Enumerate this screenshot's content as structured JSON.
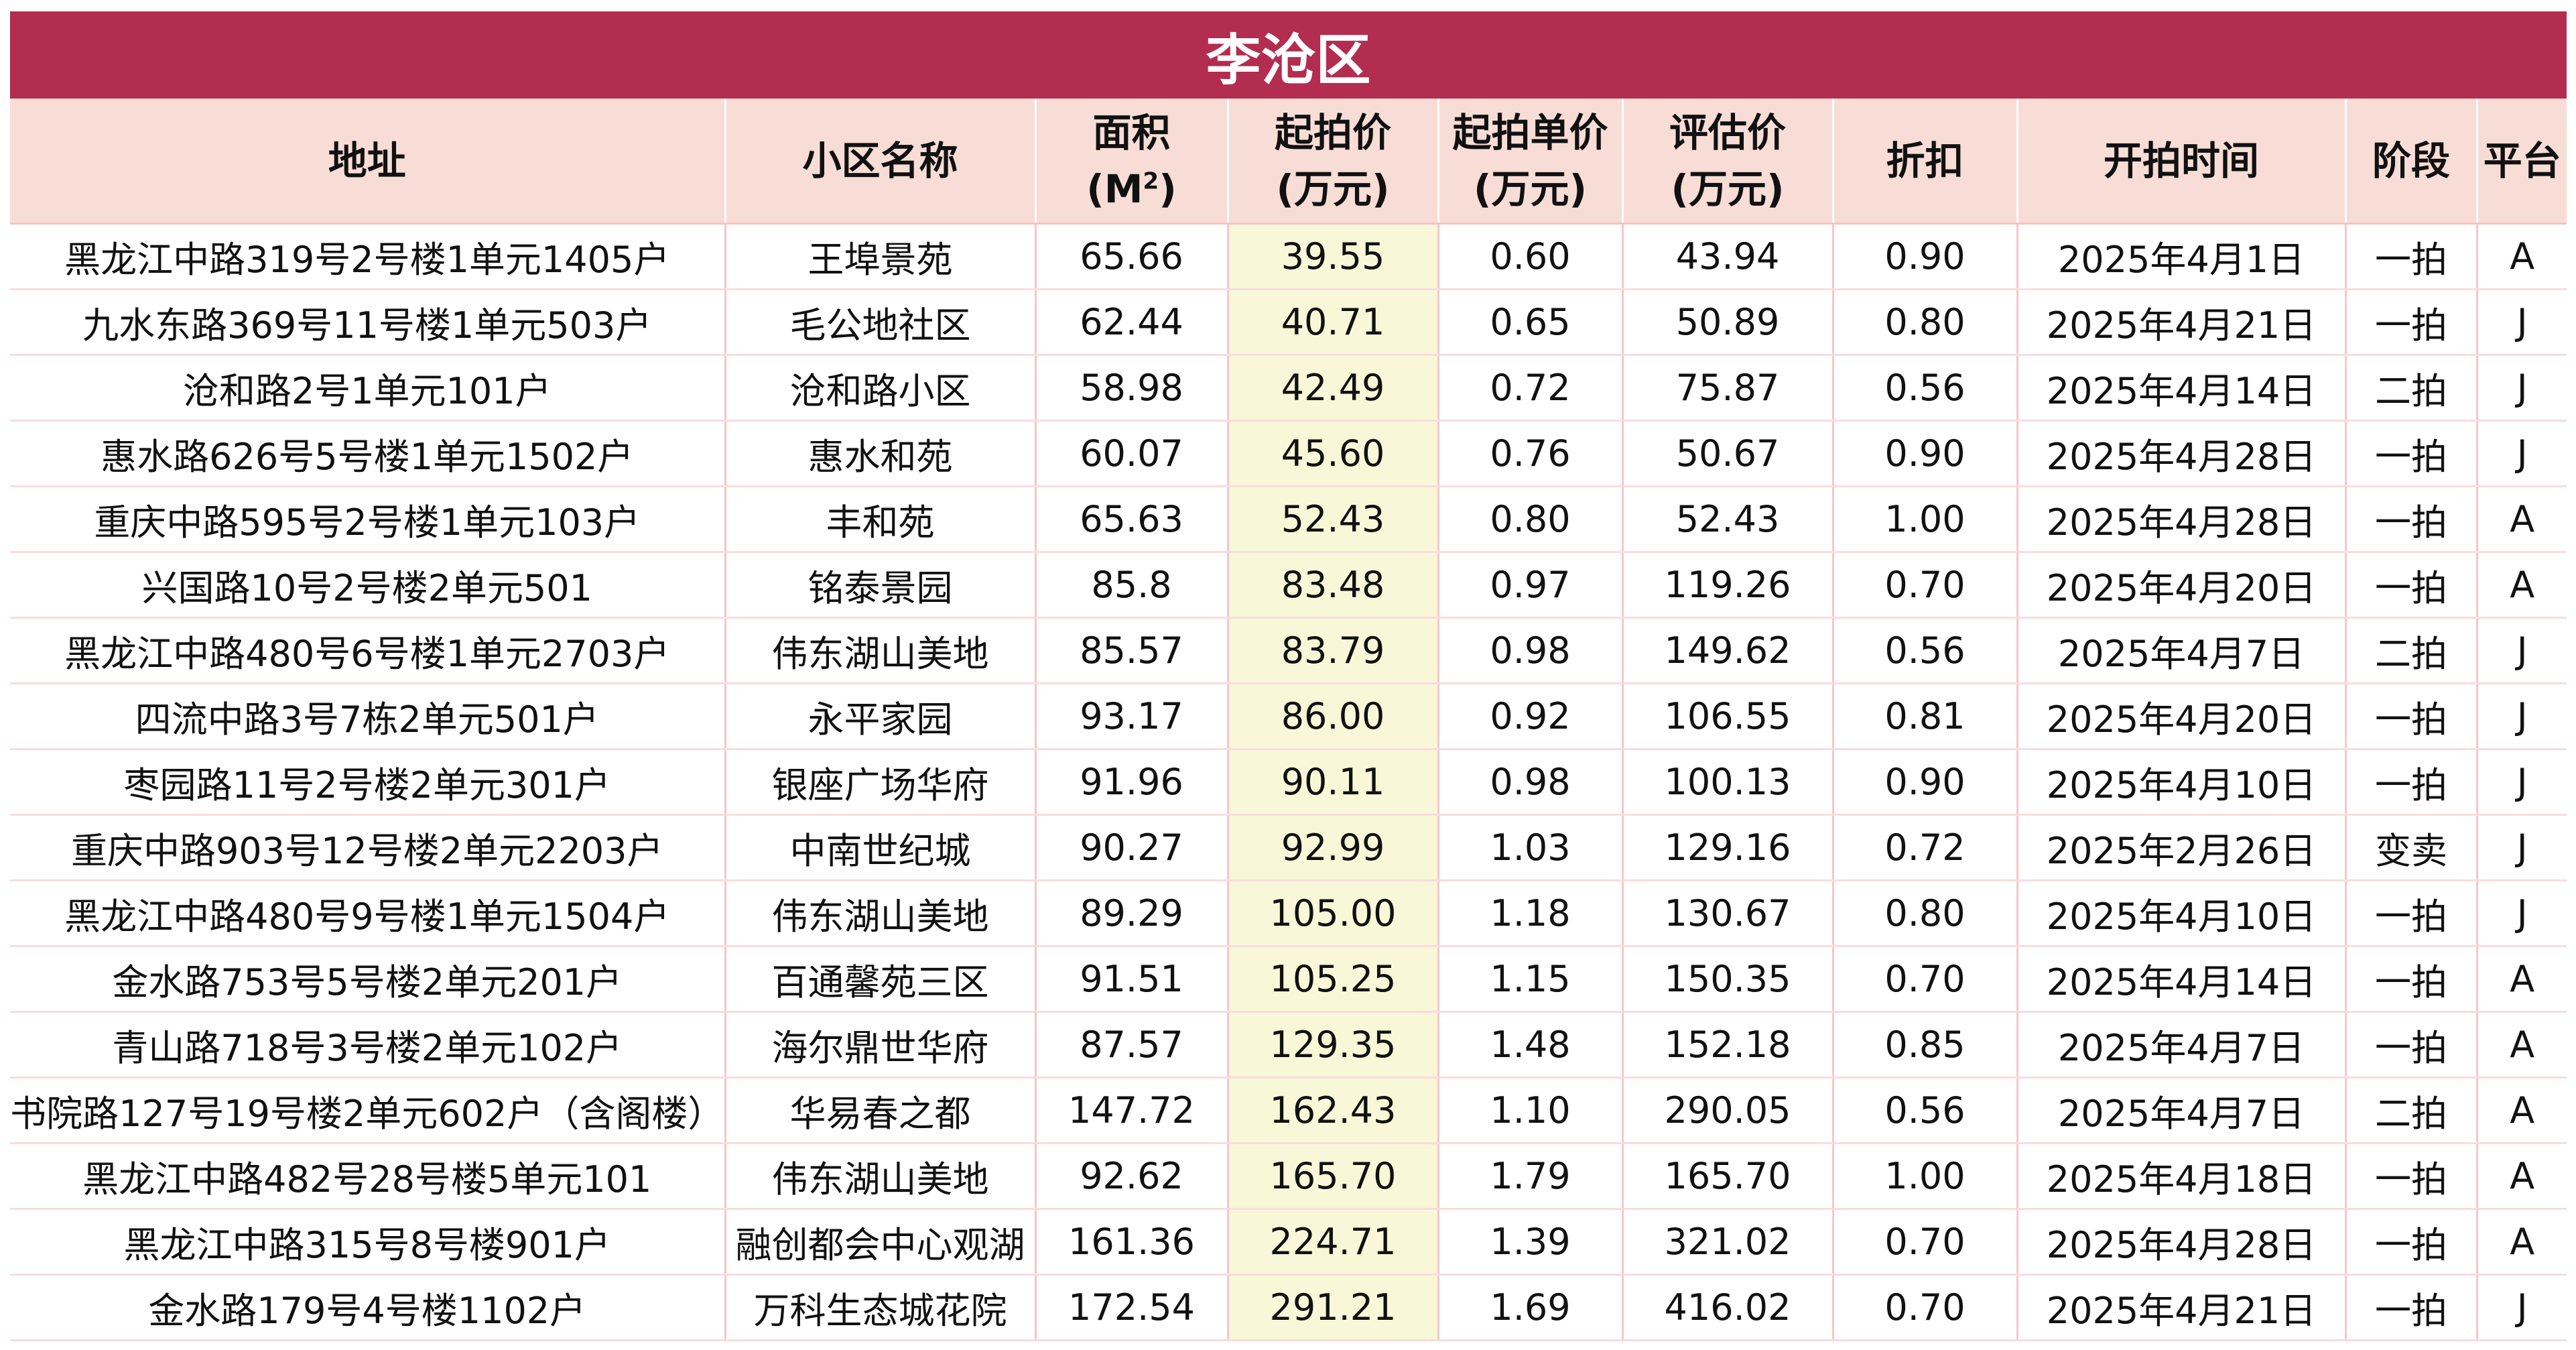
{
  "title": "李沧区",
  "headers": {
    "address": "地址",
    "community": "小区名称",
    "area_line1": "面积",
    "area_unit": "(M",
    "area_unit_sup": "2",
    "area_unit_close": ")",
    "start_price_line1": "起拍价",
    "start_price_line2": "(万元)",
    "unit_price_line1": "起拍单价",
    "unit_price_line2": "(万元)",
    "appraisal_line1": "评估价",
    "appraisal_line2": "(万元)",
    "discount": "折扣",
    "auction_time": "开拍时间",
    "stage": "阶段",
    "platform": "平台"
  },
  "colors": {
    "title_bg": "#b32d50",
    "header_bg": "#f7ddd6",
    "highlight_col_bg": "#f8f7d8",
    "grid_line": "#f4c7cb"
  },
  "rows": [
    {
      "address": "黑龙江中路319号2号楼1单元1405户",
      "community": "王埠景苑",
      "area": "65.66",
      "start_price": "39.55",
      "unit_price": "0.60",
      "appraisal": "43.94",
      "discount": "0.90",
      "date": "2025年4月1日",
      "stage": "一拍",
      "platform": "A"
    },
    {
      "address": "九水东路369号11号楼1单元503户",
      "community": "毛公地社区",
      "area": "62.44",
      "start_price": "40.71",
      "unit_price": "0.65",
      "appraisal": "50.89",
      "discount": "0.80",
      "date": "2025年4月21日",
      "stage": "一拍",
      "platform": "J"
    },
    {
      "address": "沧和路2号1单元101户",
      "community": "沧和路小区",
      "area": "58.98",
      "start_price": "42.49",
      "unit_price": "0.72",
      "appraisal": "75.87",
      "discount": "0.56",
      "date": "2025年4月14日",
      "stage": "二拍",
      "platform": "J"
    },
    {
      "address": "惠水路626号5号楼1单元1502户",
      "community": "惠水和苑",
      "area": "60.07",
      "start_price": "45.60",
      "unit_price": "0.76",
      "appraisal": "50.67",
      "discount": "0.90",
      "date": "2025年4月28日",
      "stage": "一拍",
      "platform": "J"
    },
    {
      "address": "重庆中路595号2号楼1单元103户",
      "community": "丰和苑",
      "area": "65.63",
      "start_price": "52.43",
      "unit_price": "0.80",
      "appraisal": "52.43",
      "discount": "1.00",
      "date": "2025年4月28日",
      "stage": "一拍",
      "platform": "A"
    },
    {
      "address": "兴国路10号2号楼2单元501",
      "community": "铭泰景园",
      "area": "85.8",
      "start_price": "83.48",
      "unit_price": "0.97",
      "appraisal": "119.26",
      "discount": "0.70",
      "date": "2025年4月20日",
      "stage": "一拍",
      "platform": "A"
    },
    {
      "address": "黑龙江中路480号6号楼1单元2703户",
      "community": "伟东湖山美地",
      "area": "85.57",
      "start_price": "83.79",
      "unit_price": "0.98",
      "appraisal": "149.62",
      "discount": "0.56",
      "date": "2025年4月7日",
      "stage": "二拍",
      "platform": "J"
    },
    {
      "address": "四流中路3号7栋2单元501户",
      "community": "永平家园",
      "area": "93.17",
      "start_price": "86.00",
      "unit_price": "0.92",
      "appraisal": "106.55",
      "discount": "0.81",
      "date": "2025年4月20日",
      "stage": "一拍",
      "platform": "J"
    },
    {
      "address": "枣园路11号2号楼2单元301户",
      "community": "银座广场华府",
      "area": "91.96",
      "start_price": "90.11",
      "unit_price": "0.98",
      "appraisal": "100.13",
      "discount": "0.90",
      "date": "2025年4月10日",
      "stage": "一拍",
      "platform": "J"
    },
    {
      "address": "重庆中路903号12号楼2单元2203户",
      "community": "中南世纪城",
      "area": "90.27",
      "start_price": "92.99",
      "unit_price": "1.03",
      "appraisal": "129.16",
      "discount": "0.72",
      "date": "2025年2月26日",
      "stage": "变卖",
      "platform": "J"
    },
    {
      "address": "黑龙江中路480号9号楼1单元1504户",
      "community": "伟东湖山美地",
      "area": "89.29",
      "start_price": "105.00",
      "unit_price": "1.18",
      "appraisal": "130.67",
      "discount": "0.80",
      "date": "2025年4月10日",
      "stage": "一拍",
      "platform": "J"
    },
    {
      "address": "金水路753号5号楼2单元201户",
      "community": "百通馨苑三区",
      "area": "91.51",
      "start_price": "105.25",
      "unit_price": "1.15",
      "appraisal": "150.35",
      "discount": "0.70",
      "date": "2025年4月14日",
      "stage": "一拍",
      "platform": "A"
    },
    {
      "address": "青山路718号3号楼2单元102户",
      "community": "海尔鼎世华府",
      "area": "87.57",
      "start_price": "129.35",
      "unit_price": "1.48",
      "appraisal": "152.18",
      "discount": "0.85",
      "date": "2025年4月7日",
      "stage": "一拍",
      "platform": "A"
    },
    {
      "address": "书院路127号19号楼2单元602户（含阁楼）",
      "community": "华易春之都",
      "area": "147.72",
      "start_price": "162.43",
      "unit_price": "1.10",
      "appraisal": "290.05",
      "discount": "0.56",
      "date": "2025年4月7日",
      "stage": "二拍",
      "platform": "A"
    },
    {
      "address": "黑龙江中路482号28号楼5单元101",
      "community": "伟东湖山美地",
      "area": "92.62",
      "start_price": "165.70",
      "unit_price": "1.79",
      "appraisal": "165.70",
      "discount": "1.00",
      "date": "2025年4月18日",
      "stage": "一拍",
      "platform": "A"
    },
    {
      "address": "黑龙江中路315号8号楼901户",
      "community": "融创都会中心观湖",
      "area": "161.36",
      "start_price": "224.71",
      "unit_price": "1.39",
      "appraisal": "321.02",
      "discount": "0.70",
      "date": "2025年4月28日",
      "stage": "一拍",
      "platform": "A"
    },
    {
      "address": "金水路179号4号楼1102户",
      "community": "万科生态城花院",
      "area": "172.54",
      "start_price": "291.21",
      "unit_price": "1.69",
      "appraisal": "416.02",
      "discount": "0.70",
      "date": "2025年4月21日",
      "stage": "一拍",
      "platform": "J"
    }
  ]
}
